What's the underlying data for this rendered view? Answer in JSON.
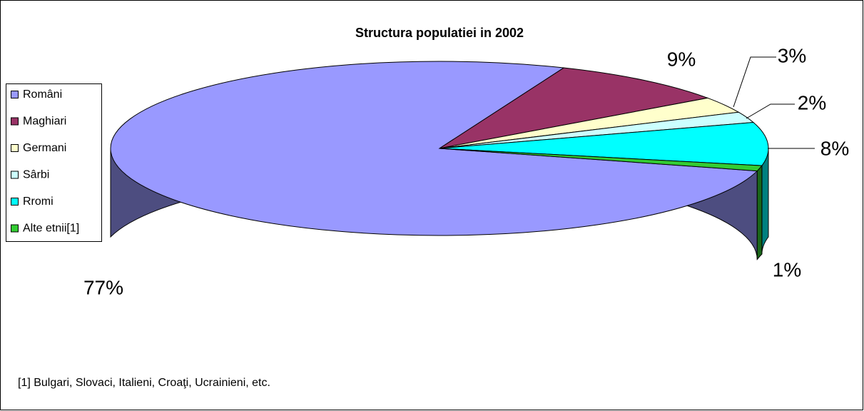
{
  "chart_data": {
    "type": "pie3d",
    "title": "Structura populatiei in 2002",
    "categories": [
      "Români",
      "Maghiari",
      "Germani",
      "Sârbi",
      "Rromi",
      "Alte etnii[1]"
    ],
    "values": [
      77,
      9,
      3,
      2,
      8,
      1
    ],
    "value_labels": [
      "77%",
      "9%",
      "3%",
      "2%",
      "8%",
      "1%"
    ],
    "colors": [
      "#9999ff",
      "#993366",
      "#ffffcc",
      "#ccffff",
      "#00ffff",
      "#33cc33"
    ],
    "legend": "left",
    "footnote": "[1] Bulgari, Slovaci, Italieni, Croaţi, Ucrainieni, etc."
  }
}
